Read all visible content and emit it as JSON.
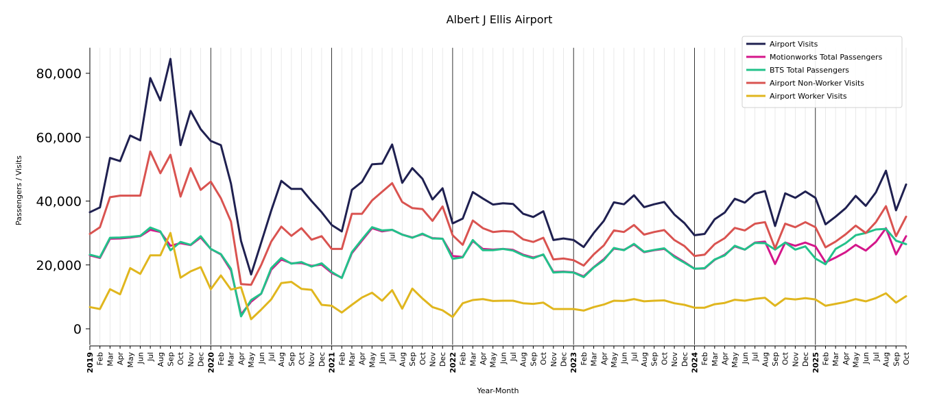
{
  "chart_data": {
    "type": "line",
    "title": "Albert J Ellis Airport",
    "xlabel": "Year-Month",
    "ylabel": "Passengers / Visits",
    "ylim": [
      -5000,
      88000
    ],
    "yticks": [
      0,
      20000,
      40000,
      60000,
      80000
    ],
    "ytick_labels": [
      "0",
      "20,000",
      "40,000",
      "60,000",
      "80,000"
    ],
    "grid": "vertical minor gridlines per month, darker line at each year start",
    "legend_position": "top-right",
    "x": [
      "2019",
      "Feb",
      "Mar",
      "Apr",
      "May",
      "Jun",
      "Jul",
      "Aug",
      "Sep",
      "Oct",
      "Nov",
      "Dec",
      "2020",
      "Feb",
      "Mar",
      "Apr",
      "May",
      "Jun",
      "Jul",
      "Aug",
      "Sep",
      "Oct",
      "Nov",
      "Dec",
      "2021",
      "Feb",
      "Mar",
      "Apr",
      "May",
      "Jun",
      "Jul",
      "Aug",
      "Sep",
      "Oct",
      "Nov",
      "Dec",
      "2022",
      "Feb",
      "Mar",
      "Apr",
      "May",
      "Jun",
      "Jul",
      "Aug",
      "Sep",
      "Oct",
      "Nov",
      "Dec",
      "2023",
      "Feb",
      "Mar",
      "Apr",
      "May",
      "Jun",
      "Jul",
      "Aug",
      "Sep",
      "Oct",
      "Nov",
      "Dec",
      "2024",
      "Feb",
      "Mar",
      "Apr",
      "May",
      "Jun",
      "Jul",
      "Aug",
      "Sep",
      "Oct",
      "Nov",
      "Dec",
      "2025",
      "Feb",
      "Mar",
      "Apr",
      "May",
      "Jun",
      "Jul",
      "Aug",
      "Sep",
      "Oct"
    ],
    "year_starts": [
      "2019",
      "2020",
      "2021",
      "2022",
      "2023",
      "2024",
      "2025"
    ],
    "series": [
      {
        "name": "Airport Visits",
        "color": "#1f2050",
        "values": [
          36500,
          38000,
          53500,
          52500,
          60500,
          59000,
          78500,
          71500,
          84500,
          57500,
          68200,
          62500,
          58800,
          57500,
          45500,
          27500,
          17000,
          27000,
          37000,
          46300,
          43800,
          43800,
          40000,
          36500,
          32500,
          30500,
          43500,
          46000,
          51500,
          51700,
          57700,
          45700,
          50300,
          47000,
          40500,
          44000,
          33000,
          34500,
          42800,
          40800,
          38900,
          39300,
          39100,
          36000,
          35000,
          36800,
          27800,
          28300,
          27800,
          25600,
          30000,
          33800,
          39600,
          39000,
          41800,
          38100,
          39000,
          39700,
          35800,
          33100,
          29300,
          29700,
          34300,
          36400,
          40700,
          39500,
          42300,
          43100,
          32200,
          42400,
          41000,
          43000,
          41000,
          32700,
          35100,
          37800,
          41600,
          38500,
          42700,
          49500,
          37100,
          45200
        ]
      },
      {
        "name": "Motionworks Total Passengers",
        "color": "#d4168a",
        "values": [
          23000,
          22200,
          28200,
          28300,
          28600,
          29000,
          31000,
          30300,
          26000,
          26800,
          26200,
          28600,
          25000,
          23300,
          18300,
          4500,
          8500,
          11000,
          18500,
          21700,
          20500,
          20600,
          19700,
          20100,
          17500,
          16000,
          23700,
          27600,
          31500,
          30500,
          31000,
          29500,
          28600,
          29600,
          28400,
          28200,
          22800,
          22500,
          27500,
          25000,
          24800,
          25000,
          24700,
          23200,
          22300,
          23200,
          17800,
          17900,
          17700,
          16400,
          19300,
          21800,
          25100,
          24700,
          26400,
          24000,
          24600,
          25000,
          22800,
          20900,
          18800,
          18900,
          21600,
          23200,
          25800,
          24800,
          27000,
          27300,
          20300,
          27000,
          26000,
          27000,
          25800,
          20800,
          22300,
          24000,
          26300,
          24500,
          27200,
          31500,
          23300,
          29000
        ]
      },
      {
        "name": "BTS Total Passengers",
        "color": "#22c18a",
        "values": [
          23200,
          22400,
          28500,
          28600,
          28800,
          29100,
          31700,
          30500,
          24600,
          27200,
          26300,
          29000,
          25000,
          23400,
          18800,
          3900,
          9000,
          11000,
          19000,
          22200,
          20400,
          20900,
          19500,
          20500,
          17800,
          15900,
          24000,
          28000,
          31800,
          30800,
          31000,
          29500,
          28500,
          29800,
          28300,
          28200,
          21900,
          22400,
          27800,
          24600,
          24600,
          25000,
          24500,
          23000,
          22100,
          23300,
          17600,
          17800,
          17600,
          16200,
          19200,
          21500,
          25300,
          24600,
          26600,
          24100,
          24700,
          25200,
          22500,
          20700,
          18800,
          19000,
          21700,
          23000,
          26000,
          24800,
          26900,
          26800,
          24800,
          27000,
          24800,
          25800,
          22000,
          20200,
          25000,
          26800,
          29300,
          30000,
          31100,
          31300,
          27600,
          26500
        ]
      },
      {
        "name": "Airport Non-Worker Visits",
        "color": "#d95350",
        "values": [
          29700,
          31800,
          41200,
          41700,
          41700,
          41700,
          55500,
          48700,
          54500,
          41400,
          50300,
          43500,
          46100,
          40900,
          33600,
          14000,
          13800,
          20000,
          27300,
          32000,
          29100,
          31500,
          27900,
          29000,
          25000,
          25000,
          36000,
          36000,
          40200,
          42900,
          45600,
          39700,
          37800,
          37500,
          33800,
          38300,
          29300,
          26300,
          33900,
          31500,
          30300,
          30600,
          30400,
          28000,
          27200,
          28500,
          21700,
          22000,
          21500,
          19800,
          23300,
          26100,
          30800,
          30300,
          32500,
          29500,
          30300,
          30900,
          27800,
          25900,
          22800,
          23200,
          26500,
          28400,
          31600,
          30800,
          32900,
          33400,
          25200,
          32900,
          31800,
          33400,
          31800,
          25500,
          27300,
          29600,
          32300,
          30000,
          33400,
          38400,
          29000,
          35100
        ]
      },
      {
        "name": "Airport Worker Visits",
        "color": "#e0b61e",
        "values": [
          6800,
          6200,
          12400,
          10800,
          19000,
          17200,
          23000,
          23000,
          30000,
          16000,
          18000,
          19300,
          12400,
          16700,
          12300,
          13000,
          3000,
          6000,
          9200,
          14300,
          14700,
          12500,
          12200,
          7500,
          7200,
          5100,
          7500,
          9800,
          11300,
          8800,
          12100,
          6300,
          12600,
          9500,
          6800,
          5800,
          3700,
          8000,
          9000,
          9300,
          8700,
          8800,
          8800,
          8000,
          7800,
          8200,
          6200,
          6200,
          6200,
          5700,
          6800,
          7600,
          8800,
          8700,
          9300,
          8600,
          8800,
          8900,
          8000,
          7500,
          6600,
          6600,
          7700,
          8100,
          9100,
          8800,
          9400,
          9700,
          7200,
          9500,
          9200,
          9600,
          9200,
          7200,
          7800,
          8400,
          9300,
          8600,
          9600,
          11100,
          8200,
          10200
        ]
      }
    ]
  }
}
